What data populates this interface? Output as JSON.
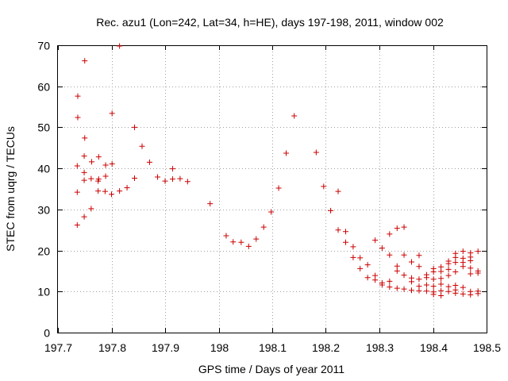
{
  "chart_data": {
    "type": "scatter",
    "title": "Rec. azu1 (Lon=242, Lat=34, h=HE), days 197-198, 2011, window 002",
    "xlabel": "GPS time / Days of year 2011",
    "ylabel": "STEC from uqrg / TECUs",
    "xlim": [
      197.7,
      198.5
    ],
    "ylim": [
      0,
      70
    ],
    "xticks": [
      197.7,
      197.8,
      197.9,
      198.0,
      198.1,
      198.2,
      198.3,
      198.4,
      198.5
    ],
    "xtick_labels": [
      "197.7",
      "197.8",
      "197.9",
      "198",
      "198.1",
      "198.2",
      "198.3",
      "198.4",
      "198.5"
    ],
    "yticks": [
      0,
      10,
      20,
      30,
      40,
      50,
      60,
      70
    ],
    "ytick_labels": [
      "0",
      "10",
      "20",
      "30",
      "40",
      "50",
      "60",
      "70"
    ],
    "grid": true,
    "legend": "none",
    "marker": "plus",
    "color": "#cc0000",
    "points": [
      [
        197.736,
        26.2
      ],
      [
        197.736,
        34.2
      ],
      [
        197.736,
        40.6
      ],
      [
        197.737,
        52.4
      ],
      [
        197.737,
        57.6
      ],
      [
        197.749,
        28.2
      ],
      [
        197.749,
        37.1
      ],
      [
        197.749,
        39.0
      ],
      [
        197.749,
        43.0
      ],
      [
        197.75,
        47.4
      ],
      [
        197.75,
        66.2
      ],
      [
        197.762,
        30.2
      ],
      [
        197.762,
        37.5
      ],
      [
        197.763,
        41.6
      ],
      [
        197.775,
        34.5
      ],
      [
        197.775,
        36.9
      ],
      [
        197.776,
        37.4
      ],
      [
        197.776,
        42.8
      ],
      [
        197.788,
        34.4
      ],
      [
        197.789,
        38.1
      ],
      [
        197.789,
        40.8
      ],
      [
        197.8,
        33.7
      ],
      [
        197.801,
        41.1
      ],
      [
        197.801,
        53.4
      ],
      [
        197.815,
        34.5
      ],
      [
        197.815,
        69.8
      ],
      [
        197.829,
        35.3
      ],
      [
        197.843,
        37.6
      ],
      [
        197.843,
        50.0
      ],
      [
        197.857,
        45.4
      ],
      [
        197.871,
        41.5
      ],
      [
        197.886,
        37.9
      ],
      [
        197.9,
        36.9
      ],
      [
        197.914,
        37.4
      ],
      [
        197.914,
        39.9
      ],
      [
        197.928,
        37.5
      ],
      [
        197.942,
        36.8
      ],
      [
        197.984,
        31.4
      ],
      [
        198.014,
        23.6
      ],
      [
        198.027,
        22.1
      ],
      [
        198.042,
        22.0
      ],
      [
        198.056,
        21.0
      ],
      [
        198.07,
        22.8
      ],
      [
        198.084,
        25.7
      ],
      [
        198.098,
        29.4
      ],
      [
        198.112,
        35.2
      ],
      [
        198.126,
        43.7
      ],
      [
        198.141,
        52.8
      ],
      [
        198.182,
        43.9
      ],
      [
        198.196,
        35.6
      ],
      [
        198.209,
        29.7
      ],
      [
        198.223,
        34.4
      ],
      [
        198.223,
        25.0
      ],
      [
        198.237,
        24.6
      ],
      [
        198.237,
        22.0
      ],
      [
        198.251,
        20.9
      ],
      [
        198.251,
        18.3
      ],
      [
        198.264,
        18.2
      ],
      [
        198.264,
        15.6
      ],
      [
        198.278,
        16.5
      ],
      [
        198.278,
        13.4
      ],
      [
        198.292,
        22.5
      ],
      [
        198.292,
        13.9
      ],
      [
        198.292,
        12.8
      ],
      [
        198.305,
        20.6
      ],
      [
        198.305,
        12.1
      ],
      [
        198.305,
        11.6
      ],
      [
        198.319,
        24.0
      ],
      [
        198.319,
        18.9
      ],
      [
        198.319,
        12.5
      ],
      [
        198.319,
        11.1
      ],
      [
        198.333,
        25.4
      ],
      [
        198.333,
        16.2
      ],
      [
        198.333,
        15.0
      ],
      [
        198.333,
        10.8
      ],
      [
        198.346,
        25.7
      ],
      [
        198.346,
        18.9
      ],
      [
        198.346,
        14.0
      ],
      [
        198.346,
        10.6
      ],
      [
        198.36,
        17.2
      ],
      [
        198.36,
        13.3
      ],
      [
        198.36,
        12.4
      ],
      [
        198.36,
        10.3
      ],
      [
        198.374,
        18.8
      ],
      [
        198.374,
        16.1
      ],
      [
        198.374,
        13.0
      ],
      [
        198.374,
        11.3
      ],
      [
        198.374,
        10.2
      ],
      [
        198.388,
        14.1
      ],
      [
        198.388,
        13.4
      ],
      [
        198.388,
        11.6
      ],
      [
        198.388,
        10.1
      ],
      [
        198.401,
        15.6
      ],
      [
        198.401,
        14.8
      ],
      [
        198.401,
        13.0
      ],
      [
        198.401,
        11.3
      ],
      [
        198.401,
        9.9
      ],
      [
        198.401,
        9.3
      ],
      [
        198.415,
        16.0
      ],
      [
        198.415,
        14.9
      ],
      [
        198.415,
        13.2
      ],
      [
        198.415,
        11.8
      ],
      [
        198.415,
        10.2
      ],
      [
        198.415,
        9.0
      ],
      [
        198.429,
        17.4
      ],
      [
        198.429,
        16.8
      ],
      [
        198.429,
        15.4
      ],
      [
        198.429,
        13.9
      ],
      [
        198.429,
        11.2
      ],
      [
        198.429,
        10.0
      ],
      [
        198.442,
        19.3
      ],
      [
        198.442,
        18.3
      ],
      [
        198.442,
        17.1
      ],
      [
        198.442,
        14.8
      ],
      [
        198.442,
        11.5
      ],
      [
        198.442,
        10.4
      ],
      [
        198.442,
        9.6
      ],
      [
        198.456,
        19.8
      ],
      [
        198.456,
        18.1
      ],
      [
        198.456,
        17.1
      ],
      [
        198.456,
        16.1
      ],
      [
        198.456,
        11.0
      ],
      [
        198.456,
        9.4
      ],
      [
        198.47,
        19.4
      ],
      [
        198.47,
        18.4
      ],
      [
        198.47,
        17.5
      ],
      [
        198.47,
        15.7
      ],
      [
        198.47,
        14.3
      ],
      [
        198.47,
        10.0
      ],
      [
        198.47,
        9.2
      ],
      [
        198.484,
        19.8
      ],
      [
        198.484,
        15.0
      ],
      [
        198.484,
        14.5
      ],
      [
        198.484,
        10.1
      ],
      [
        198.484,
        9.5
      ]
    ]
  }
}
